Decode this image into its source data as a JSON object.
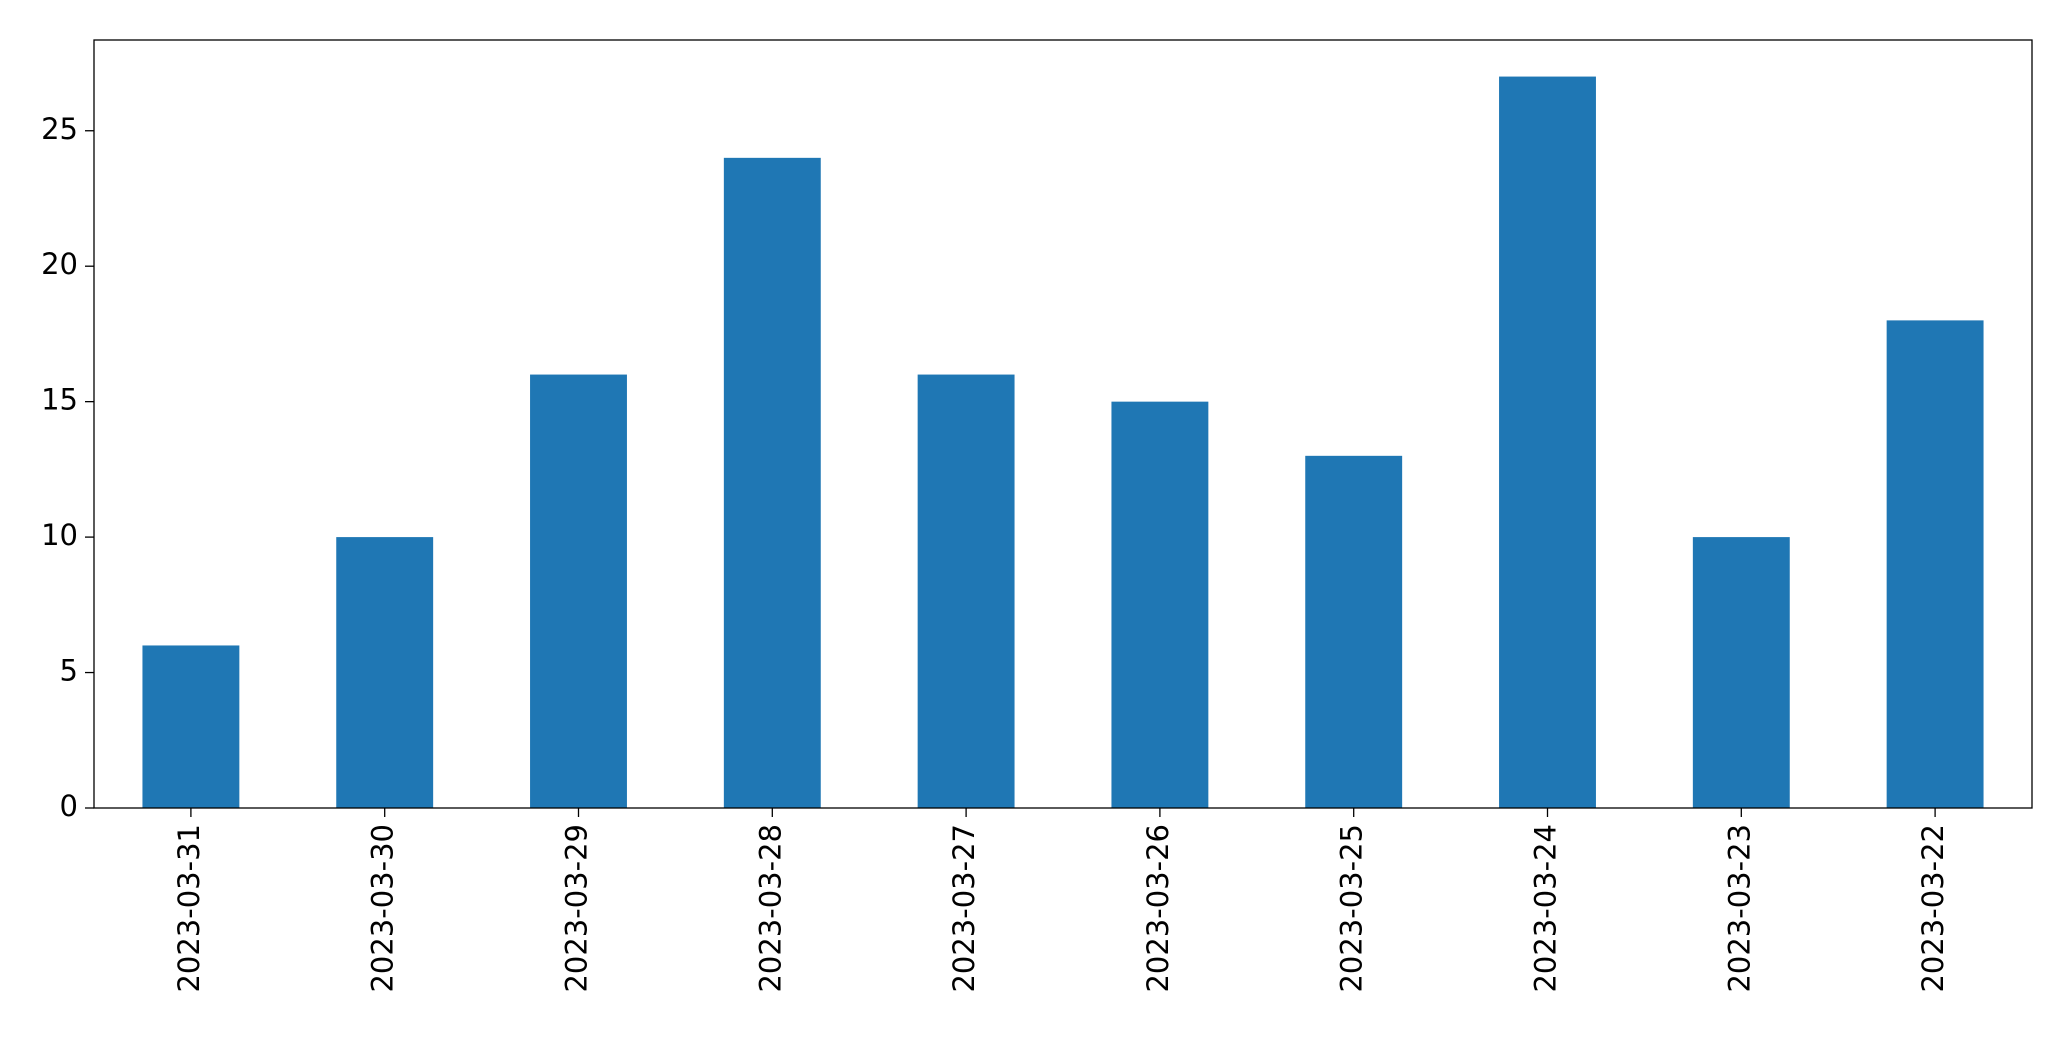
{
  "chart_data": {
    "type": "bar",
    "categories": [
      "2023-03-31",
      "2023-03-30",
      "2023-03-29",
      "2023-03-28",
      "2023-03-27",
      "2023-03-26",
      "2023-03-25",
      "2023-03-24",
      "2023-03-23",
      "2023-03-22"
    ],
    "values": [
      6,
      10,
      16,
      24,
      16,
      15,
      13,
      27,
      10,
      18
    ],
    "color": "#1f77b4",
    "ylim": [
      0,
      28.35
    ],
    "yticks": [
      0,
      5,
      10,
      15,
      20,
      25
    ]
  }
}
